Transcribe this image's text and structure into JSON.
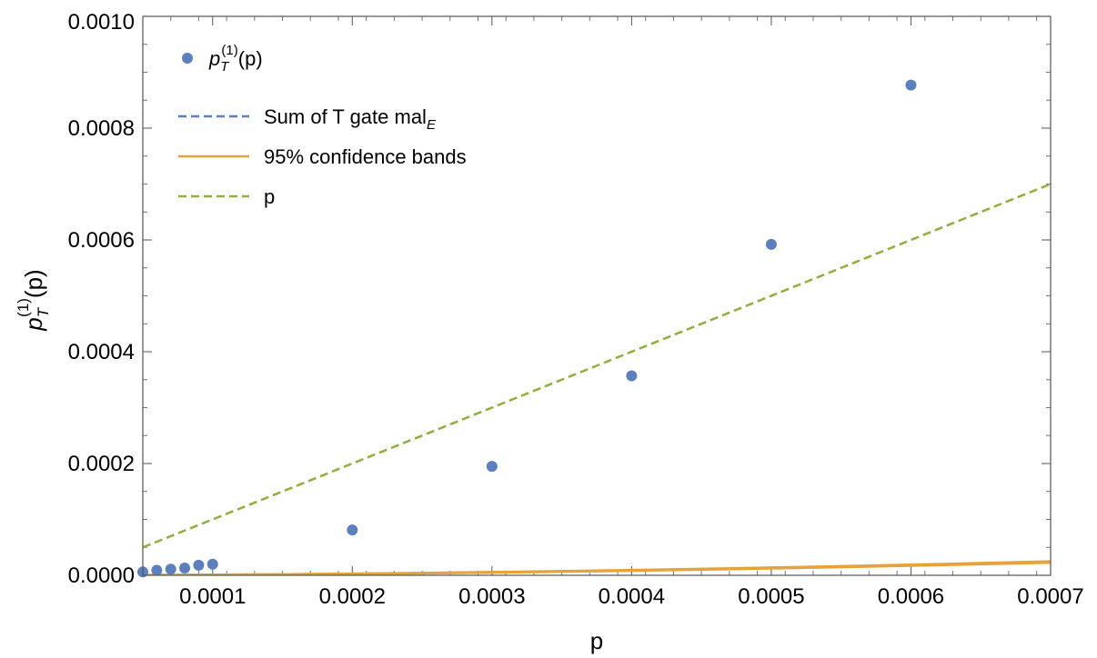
{
  "chart_data": {
    "type": "line",
    "title": "",
    "xlabel": "p",
    "ylabel": {
      "base": "p",
      "sub": "T",
      "sup": "(1)",
      "arg": "(p)"
    },
    "xlim": [
      5e-05,
      0.0007
    ],
    "ylim": [
      0,
      0.001
    ],
    "x_ticks": [
      0.0001,
      0.0002,
      0.0003,
      0.0004,
      0.0005,
      0.0006,
      0.0007
    ],
    "x_tick_labels": [
      "0.0001",
      "0.0002",
      "0.0003",
      "0.0004",
      "0.0005",
      "0.0006",
      "0.0007"
    ],
    "y_ticks": [
      0,
      0.0002,
      0.0004,
      0.0006,
      0.0008,
      0.001
    ],
    "y_tick_labels": [
      "0.0000",
      "0.0002",
      "0.0004",
      "0.0006",
      "0.0008",
      "0.0010"
    ],
    "legend_position": "top-left",
    "legend": [
      {
        "id": "points",
        "marker": "dot",
        "color": "#5b7fbf",
        "label": {
          "base": "p",
          "sub": "T",
          "sup": "(1)",
          "arg": "(p)"
        }
      },
      {
        "id": "fit",
        "marker": "dashed",
        "color": "#5b7fbf",
        "label": {
          "base": "Sum of T gate mal",
          "sub": "E"
        }
      },
      {
        "id": "bands",
        "marker": "solid",
        "color": "#e8a23a",
        "label": {
          "base": "95% confidence bands"
        }
      },
      {
        "id": "linear",
        "marker": "dashed",
        "color": "#8fb03a",
        "label": {
          "base": "p"
        }
      }
    ],
    "series": [
      {
        "name": "p_T^(1)(p)",
        "kind": "points",
        "color": "#5b7fbf",
        "x": [
          5e-05,
          6e-05,
          7e-05,
          8e-05,
          9e-05,
          0.0001,
          0.0002,
          0.0003,
          0.0004,
          0.0005,
          0.0006
        ],
        "y": [
          6e-06,
          9e-06,
          1.1e-05,
          1.3e-05,
          1.8e-05,
          2e-05,
          8.1e-05,
          0.000195,
          0.000357,
          0.000592,
          0.000877
        ]
      },
      {
        "name": "Sum of T gate mal_E",
        "kind": "power-law",
        "color": "#5b7fbf",
        "dash": true,
        "coef": 9.1,
        "exp": 1.77
      },
      {
        "name": "95% confidence band (upper)",
        "kind": "power-law",
        "color": "#e8a23a",
        "dash": false,
        "coef": 9.45,
        "exp": 1.77
      },
      {
        "name": "95% confidence band (lower)",
        "kind": "power-law",
        "color": "#e8a23a",
        "dash": false,
        "coef": 8.8,
        "exp": 1.77
      },
      {
        "name": "p",
        "kind": "linear",
        "color": "#8fb03a",
        "dash": true,
        "slope": 1
      }
    ],
    "band_fill": "#f5dfc0"
  }
}
